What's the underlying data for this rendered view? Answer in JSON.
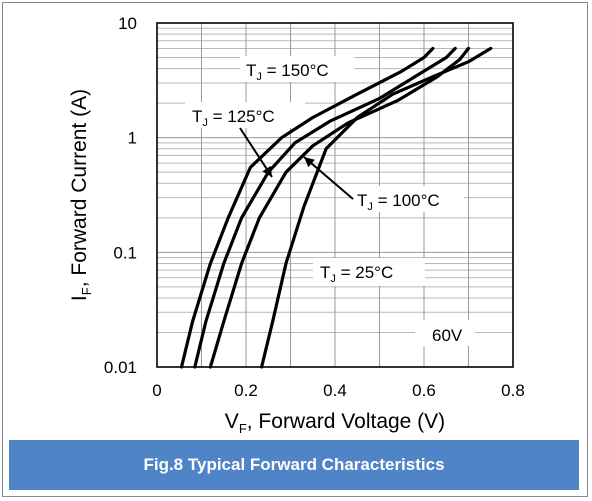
{
  "caption": "Fig.8 Typical Forward Characteristics",
  "chart_data": {
    "type": "line",
    "log_y": true,
    "xlim": [
      0,
      0.8
    ],
    "ylim": [
      0.01,
      10
    ],
    "x_ticks": [
      0,
      0.2,
      0.4,
      0.6,
      0.8
    ],
    "x_tick_labels": [
      "0",
      "0.2",
      "0.4",
      "0.6",
      "0.8"
    ],
    "y_ticks": [
      0.01,
      0.1,
      1,
      10
    ],
    "y_tick_labels": [
      "0.01",
      "0.1",
      "1",
      "10"
    ],
    "xlabel": {
      "main": "V",
      "sub": "F",
      "rest": ", Forward Voltage (V)"
    },
    "ylabel": {
      "main": "I",
      "sub": "F",
      "rest": ", Forward Current (A)"
    },
    "grid": true,
    "note": "60V",
    "series": [
      {
        "name": {
          "main": "T",
          "sub": "J",
          "rest": " = 150°C"
        },
        "x": [
          0.055,
          0.08,
          0.12,
          0.16,
          0.21,
          0.28,
          0.35,
          0.45,
          0.55,
          0.6,
          0.62
        ],
        "y": [
          0.01,
          0.025,
          0.08,
          0.2,
          0.55,
          1.0,
          1.5,
          2.4,
          3.8,
          5.0,
          6.0
        ]
      },
      {
        "name": {
          "main": "T",
          "sub": "J",
          "rest": " = 125°C"
        },
        "x": [
          0.085,
          0.11,
          0.15,
          0.19,
          0.25,
          0.31,
          0.39,
          0.5,
          0.59,
          0.65,
          0.67
        ],
        "y": [
          0.01,
          0.025,
          0.08,
          0.2,
          0.5,
          0.9,
          1.4,
          2.2,
          3.6,
          5.0,
          6.0
        ]
      },
      {
        "name": {
          "main": "T",
          "sub": "J",
          "rest": " = 100°C"
        },
        "x": [
          0.12,
          0.15,
          0.19,
          0.23,
          0.29,
          0.35,
          0.43,
          0.54,
          0.63,
          0.68,
          0.7
        ],
        "y": [
          0.01,
          0.025,
          0.08,
          0.2,
          0.5,
          0.85,
          1.35,
          2.1,
          3.4,
          4.8,
          6.0
        ]
      },
      {
        "name": {
          "main": "T",
          "sub": "J",
          "rest": " = 25°C"
        },
        "x": [
          0.235,
          0.26,
          0.29,
          0.33,
          0.38,
          0.45,
          0.53,
          0.62,
          0.7,
          0.75
        ],
        "y": [
          0.01,
          0.025,
          0.08,
          0.25,
          0.8,
          1.5,
          2.4,
          3.4,
          4.6,
          6.0
        ]
      }
    ]
  }
}
